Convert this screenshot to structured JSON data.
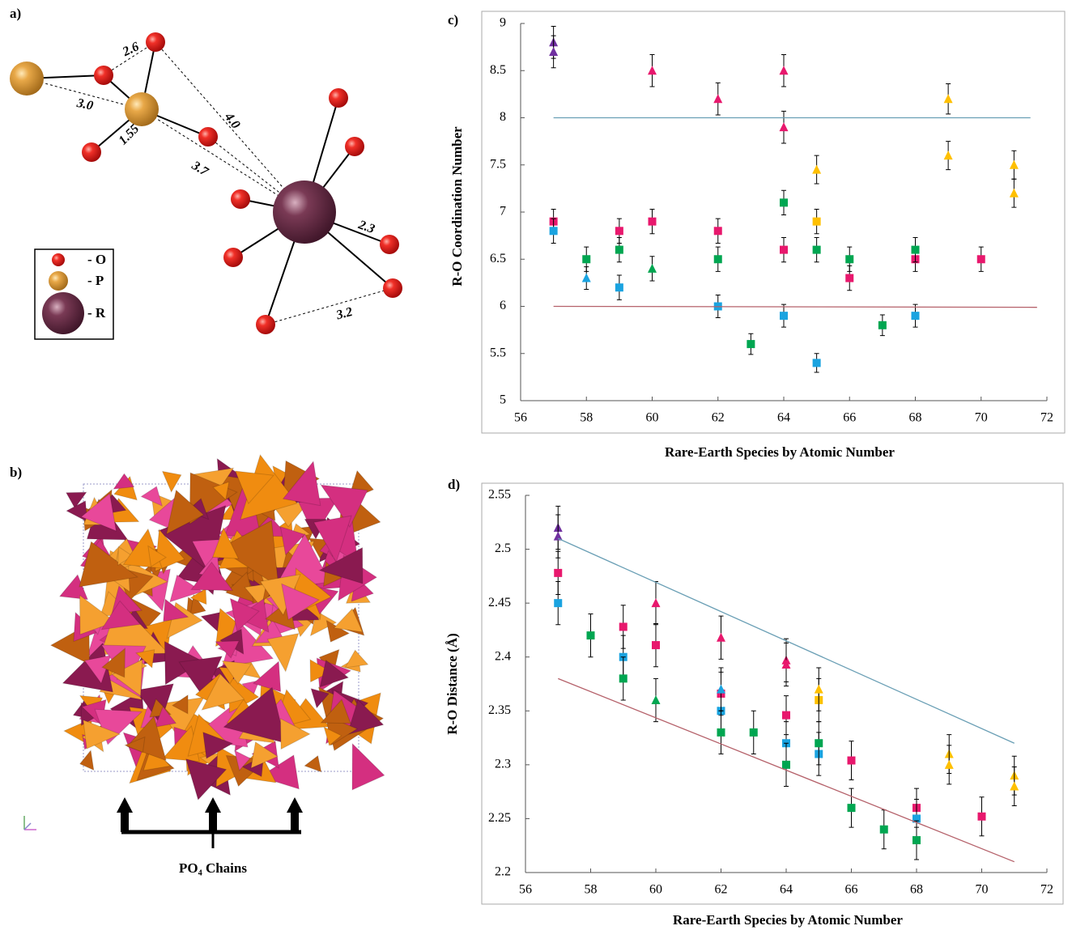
{
  "panel_a": {
    "label": "a)",
    "distances": [
      "2.6",
      "3.0",
      "4.0",
      "1.55",
      "3.7",
      "2.3",
      "3.2"
    ],
    "legend": [
      "- O",
      "- P",
      "- R"
    ]
  },
  "panel_b": {
    "label": "b)",
    "annotation": "PO₄ Chains"
  },
  "chart_data": [
    {
      "type": "scatter",
      "label": "c)",
      "x_label": "Rare-Earth Species by Atomic Number",
      "y_label": "R-O Coordination Number",
      "xlim": [
        56,
        72
      ],
      "xticks": [
        56,
        58,
        60,
        62,
        64,
        66,
        68,
        70,
        72
      ],
      "ylim": [
        5,
        9
      ],
      "yticks": [
        5,
        5.5,
        6,
        6.5,
        7,
        7.5,
        8,
        8.5,
        9
      ],
      "series": [
        {
          "color": "#7030a0",
          "marker": "triangle",
          "x": [
            57,
            57
          ],
          "values": [
            8.8,
            8.7
          ],
          "errors": [
            0.17,
            0.17
          ]
        },
        {
          "color": "#e8186d",
          "marker": "triangle",
          "x": [
            60,
            62,
            64,
            64
          ],
          "values": [
            8.5,
            8.2,
            8.5,
            7.9
          ],
          "errors": [
            0.17,
            0.17,
            0.17,
            0.17
          ]
        },
        {
          "color": "#e8186d",
          "marker": "square",
          "x": [
            57,
            59,
            60,
            62,
            64,
            66,
            68,
            70
          ],
          "values": [
            6.9,
            6.8,
            6.9,
            6.8,
            6.6,
            6.3,
            6.5,
            6.5
          ],
          "errors": [
            0.13,
            0.13,
            0.13,
            0.13,
            0.13,
            0.13,
            0.13,
            0.13
          ]
        },
        {
          "color": "#1aa3e0",
          "marker": "square",
          "x": [
            57,
            59,
            62,
            64,
            65,
            68
          ],
          "values": [
            6.8,
            6.2,
            6.0,
            5.9,
            5.4,
            5.9
          ],
          "errors": [
            0.13,
            0.13,
            0.12,
            0.12,
            0.1,
            0.12
          ]
        },
        {
          "color": "#1aa3e0",
          "marker": "triangle",
          "x": [
            58
          ],
          "values": [
            6.3
          ],
          "errors": [
            0.12
          ]
        },
        {
          "color": "#00a651",
          "marker": "square",
          "x": [
            58,
            59,
            62,
            63,
            64,
            65,
            66,
            67,
            68
          ],
          "values": [
            6.5,
            6.6,
            6.5,
            5.6,
            7.1,
            6.6,
            6.5,
            5.8,
            6.6
          ],
          "errors": [
            0.13,
            0.13,
            0.13,
            0.11,
            0.13,
            0.13,
            0.13,
            0.11,
            0.13
          ]
        },
        {
          "color": "#00a651",
          "marker": "triangle",
          "x": [
            60
          ],
          "values": [
            6.4
          ],
          "errors": [
            0.13
          ]
        },
        {
          "color": "#ffc000",
          "marker": "square",
          "x": [
            65
          ],
          "values": [
            6.9
          ],
          "errors": [
            0.13
          ]
        },
        {
          "color": "#ffc000",
          "marker": "triangle",
          "x": [
            65,
            69,
            69,
            71,
            71
          ],
          "values": [
            7.45,
            8.2,
            7.6,
            7.5,
            7.2
          ],
          "errors": [
            0.15,
            0.16,
            0.15,
            0.15,
            0.15
          ]
        },
        {
          "color": "#6a9fb5",
          "marker": "line",
          "x": [
            57,
            71.5
          ],
          "values": [
            8,
            8
          ]
        },
        {
          "color": "#b5616a",
          "marker": "line",
          "x": [
            57,
            71.7
          ],
          "values": [
            6,
            5.99
          ]
        }
      ]
    },
    {
      "type": "scatter",
      "label": "d)",
      "x_label": "Rare-Earth Species by Atomic Number",
      "y_label": "R-O Distance (Å)",
      "xlim": [
        56,
        72
      ],
      "xticks": [
        56,
        58,
        60,
        62,
        64,
        66,
        68,
        70,
        72
      ],
      "ylim": [
        2.2,
        2.55
      ],
      "yticks": [
        2.2,
        2.25,
        2.3,
        2.35,
        2.4,
        2.45,
        2.5,
        2.55
      ],
      "series": [
        {
          "color": "#7030a0",
          "marker": "triangle",
          "x": [
            57,
            57
          ],
          "values": [
            2.52,
            2.512
          ],
          "errors": [
            0.02,
            0.02
          ]
        },
        {
          "color": "#e8186d",
          "marker": "triangle",
          "x": [
            60,
            62,
            64,
            64
          ],
          "values": [
            2.45,
            2.418,
            2.397,
            2.393
          ],
          "errors": [
            0.02,
            0.02,
            0.02,
            0.02
          ]
        },
        {
          "color": "#e8186d",
          "marker": "square",
          "x": [
            57,
            59,
            60,
            62,
            64,
            66,
            68,
            70
          ],
          "values": [
            2.478,
            2.428,
            2.411,
            2.366,
            2.346,
            2.304,
            2.26,
            2.252
          ],
          "errors": [
            0.02,
            0.02,
            0.02,
            0.02,
            0.018,
            0.018,
            0.018,
            0.018
          ]
        },
        {
          "color": "#1aa3e0",
          "marker": "square",
          "x": [
            57,
            59,
            62,
            64,
            65,
            68
          ],
          "values": [
            2.45,
            2.4,
            2.35,
            2.32,
            2.31,
            2.25
          ],
          "errors": [
            0.02,
            0.02,
            0.02,
            0.02,
            0.02,
            0.018
          ]
        },
        {
          "color": "#1aa3e0",
          "marker": "triangle",
          "x": [
            62
          ],
          "values": [
            2.37
          ],
          "errors": [
            0.02
          ]
        },
        {
          "color": "#00a651",
          "marker": "square",
          "x": [
            58,
            59,
            62,
            63,
            64,
            65,
            66,
            67,
            68
          ],
          "values": [
            2.42,
            2.38,
            2.33,
            2.33,
            2.3,
            2.32,
            2.26,
            2.24,
            2.23
          ],
          "errors": [
            0.02,
            0.02,
            0.02,
            0.02,
            0.02,
            0.02,
            0.018,
            0.018,
            0.018
          ]
        },
        {
          "color": "#00a651",
          "marker": "triangle",
          "x": [
            60
          ],
          "values": [
            2.36
          ],
          "errors": [
            0.02
          ]
        },
        {
          "color": "#ffc000",
          "marker": "square",
          "x": [
            65
          ],
          "values": [
            2.36
          ],
          "errors": [
            0.02
          ]
        },
        {
          "color": "#ffc000",
          "marker": "triangle",
          "x": [
            65,
            69,
            69,
            71,
            71
          ],
          "values": [
            2.37,
            2.31,
            2.3,
            2.29,
            2.28
          ],
          "errors": [
            0.02,
            0.018,
            0.018,
            0.018,
            0.018
          ]
        },
        {
          "color": "#6a9fb5",
          "marker": "line",
          "x": [
            57,
            71
          ],
          "values": [
            2.51,
            2.32
          ]
        },
        {
          "color": "#b5616a",
          "marker": "line",
          "x": [
            57,
            71
          ],
          "values": [
            2.38,
            2.21
          ]
        }
      ]
    }
  ]
}
